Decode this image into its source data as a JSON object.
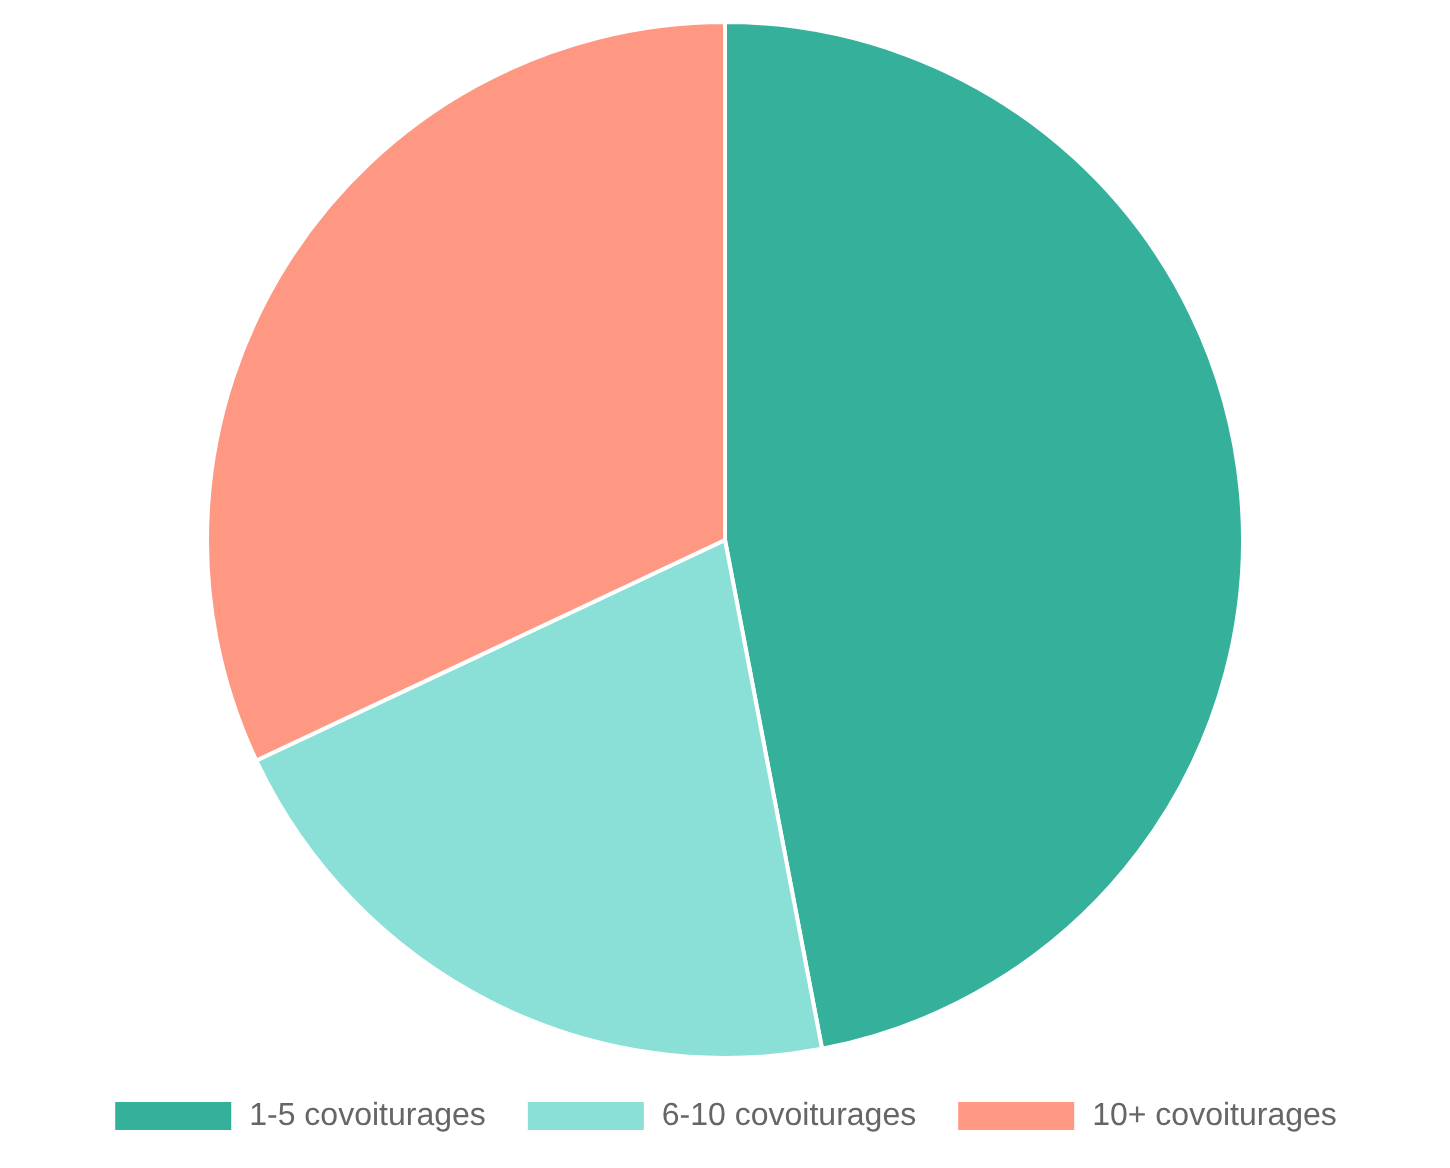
{
  "chart_data": {
    "type": "pie",
    "categories": [
      "1-5 covoiturages",
      "6-10 covoiturages",
      "10+ covoiturages"
    ],
    "values": [
      47,
      21,
      32
    ],
    "colors": [
      "#35b09b",
      "#8adfd6",
      "#fe9882"
    ],
    "legend": "bottom"
  }
}
